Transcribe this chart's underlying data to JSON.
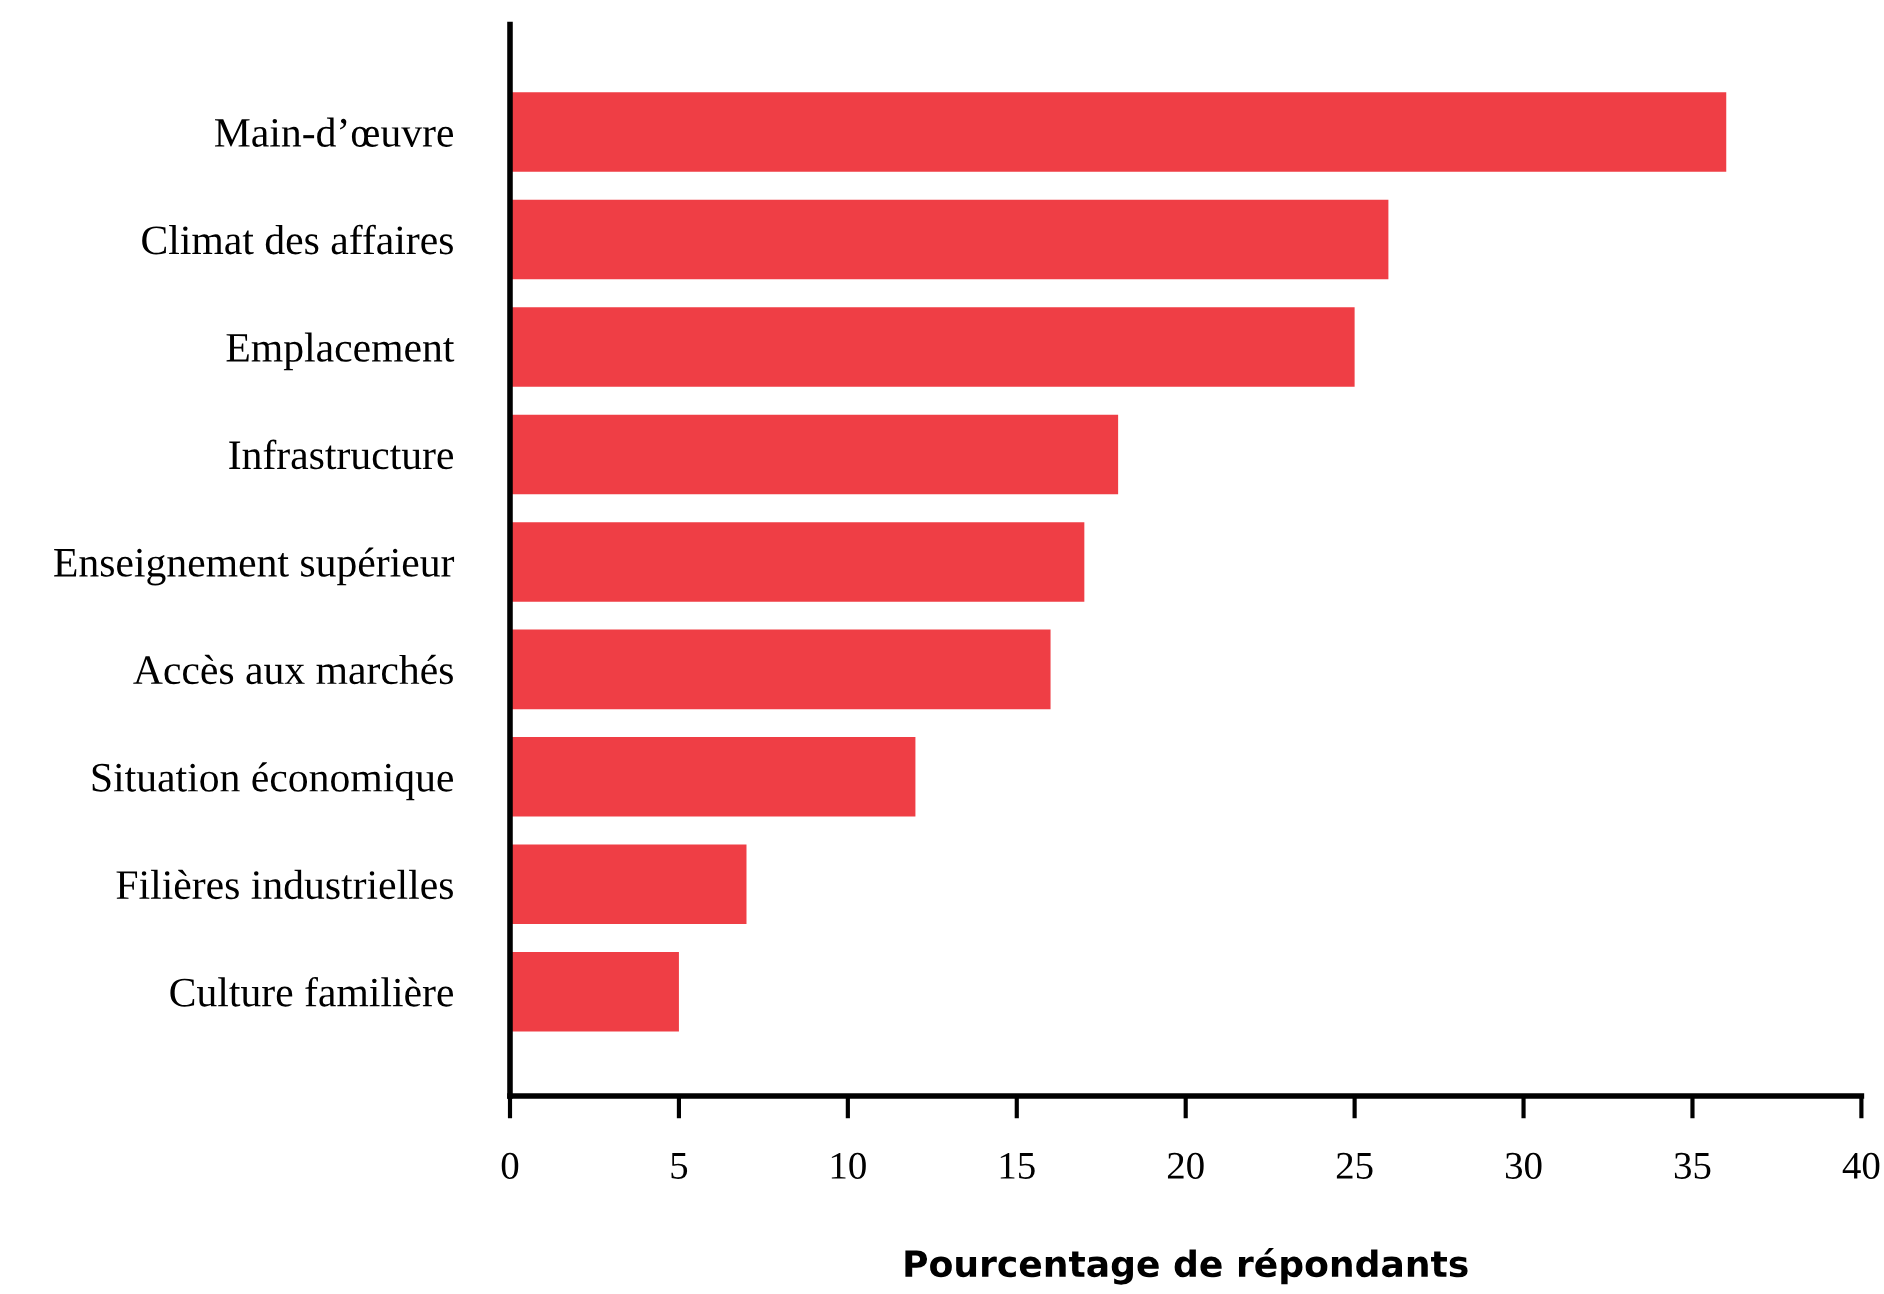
{
  "chart_data": {
    "type": "bar",
    "orientation": "horizontal",
    "categories": [
      "Main-d’œuvre",
      "Climat des affaires",
      "Emplacement",
      "Infrastructure",
      "Enseignement supérieur",
      "Accès aux marchés",
      "Situation économique",
      "Filières industrielles",
      "Culture familière"
    ],
    "values": [
      36,
      26,
      25,
      18,
      17,
      16,
      12,
      7,
      5
    ],
    "color": "#ef3e45",
    "xlabel": "Pourcentage de répondants",
    "xlim": [
      0,
      40
    ],
    "xticks": [
      0,
      5,
      10,
      15,
      20,
      25,
      30,
      35,
      40
    ],
    "grid": false,
    "legend": false
  }
}
